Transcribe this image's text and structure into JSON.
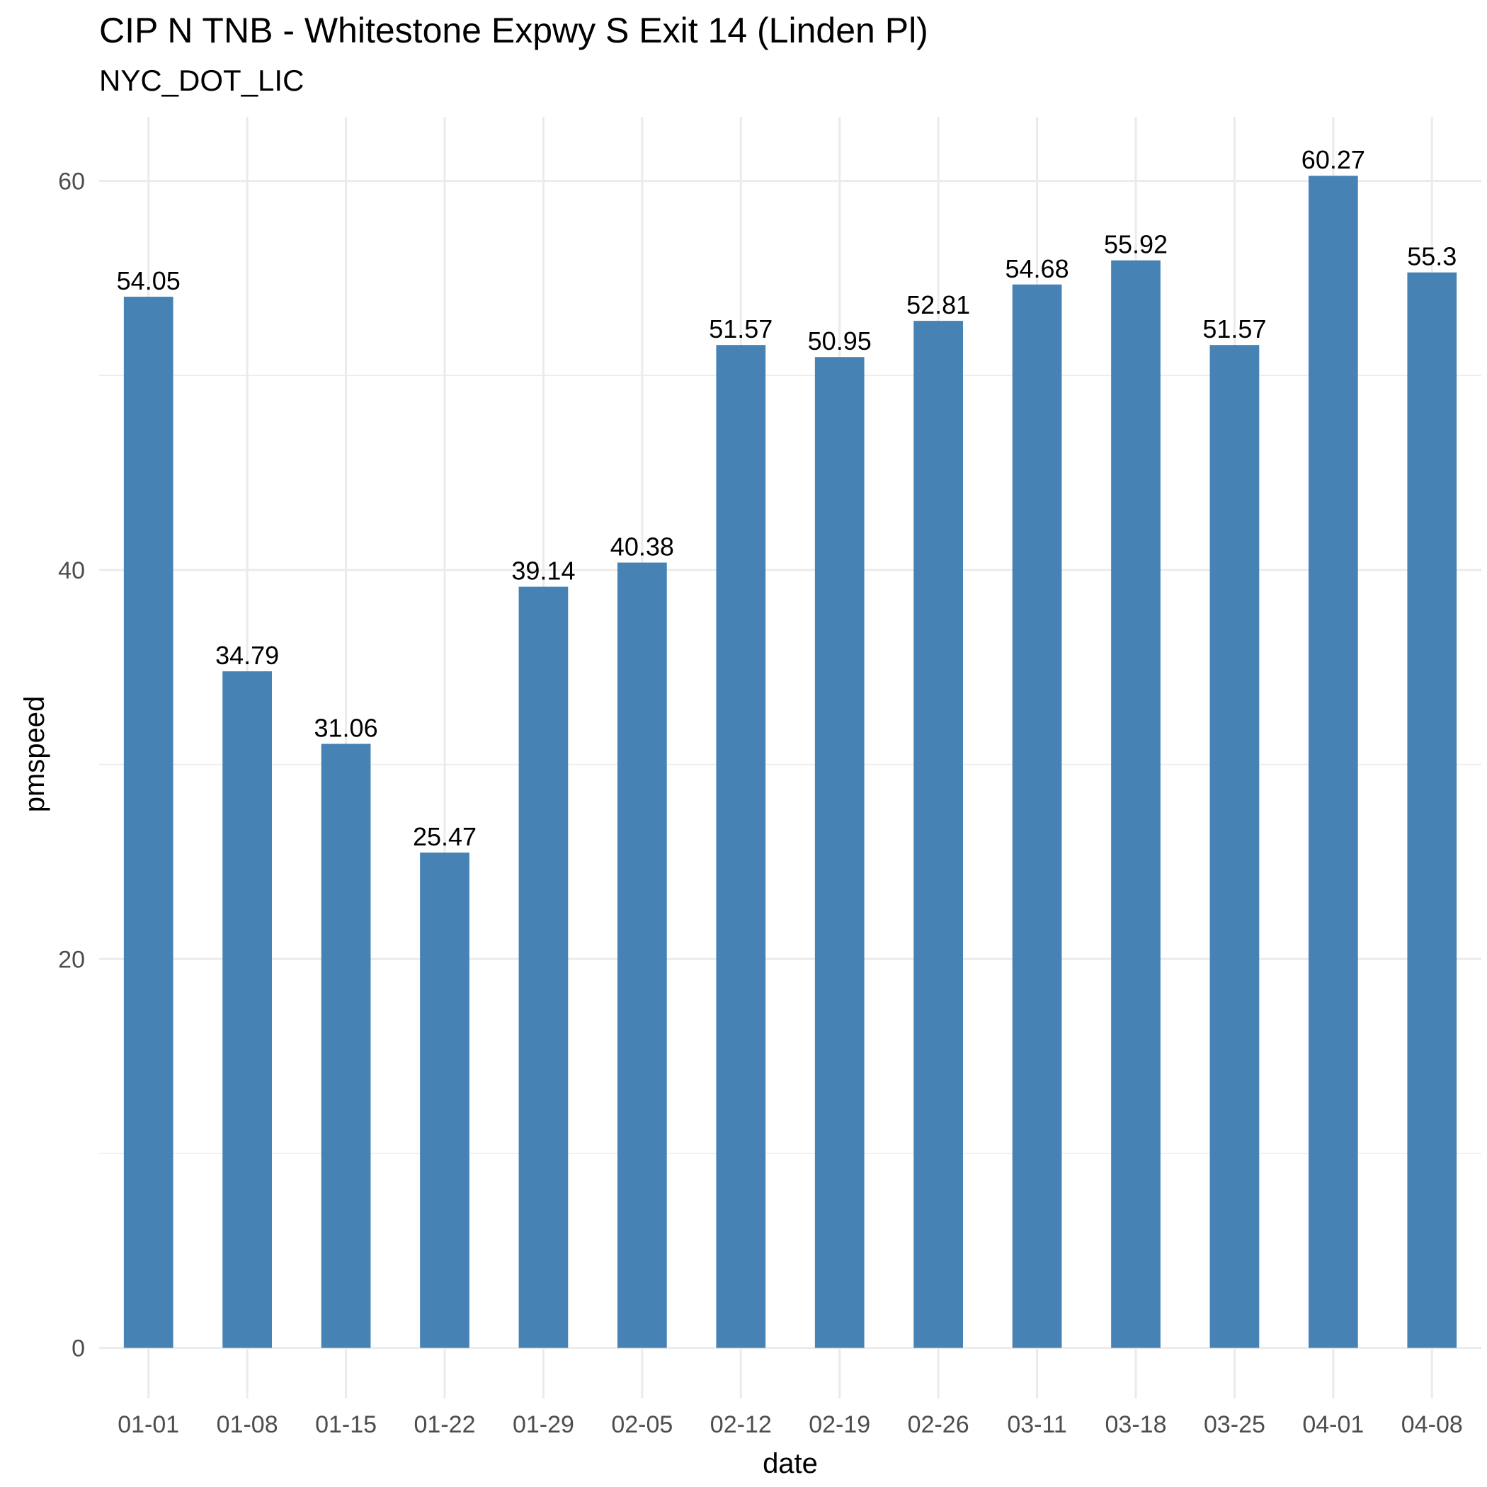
{
  "chart_data": {
    "type": "bar",
    "title": "CIP N TNB - Whitestone Expwy S Exit 14 (Linden Pl)",
    "subtitle": "NYC_DOT_LIC",
    "xlabel": "date",
    "ylabel": "pmspeed",
    "categories": [
      "01-01",
      "01-08",
      "01-15",
      "01-22",
      "01-29",
      "02-05",
      "02-12",
      "02-19",
      "02-26",
      "03-11",
      "03-18",
      "03-25",
      "04-01",
      "04-08"
    ],
    "values": [
      54.05,
      34.79,
      31.06,
      25.47,
      39.14,
      40.38,
      51.57,
      50.95,
      52.81,
      54.68,
      55.92,
      51.57,
      60.27,
      55.3
    ],
    "value_labels": [
      "54.05",
      "34.79",
      "31.06",
      "25.47",
      "39.14",
      "40.38",
      "51.57",
      "50.95",
      "52.81",
      "54.68",
      "55.92",
      "51.57",
      "60.27",
      "55.3"
    ],
    "yticks": [
      0,
      20,
      40,
      60
    ],
    "ylim": [
      -2.6,
      63.3
    ],
    "grid": true,
    "bar_color": "#4682B4",
    "grid_color": "#EBEBEB"
  }
}
